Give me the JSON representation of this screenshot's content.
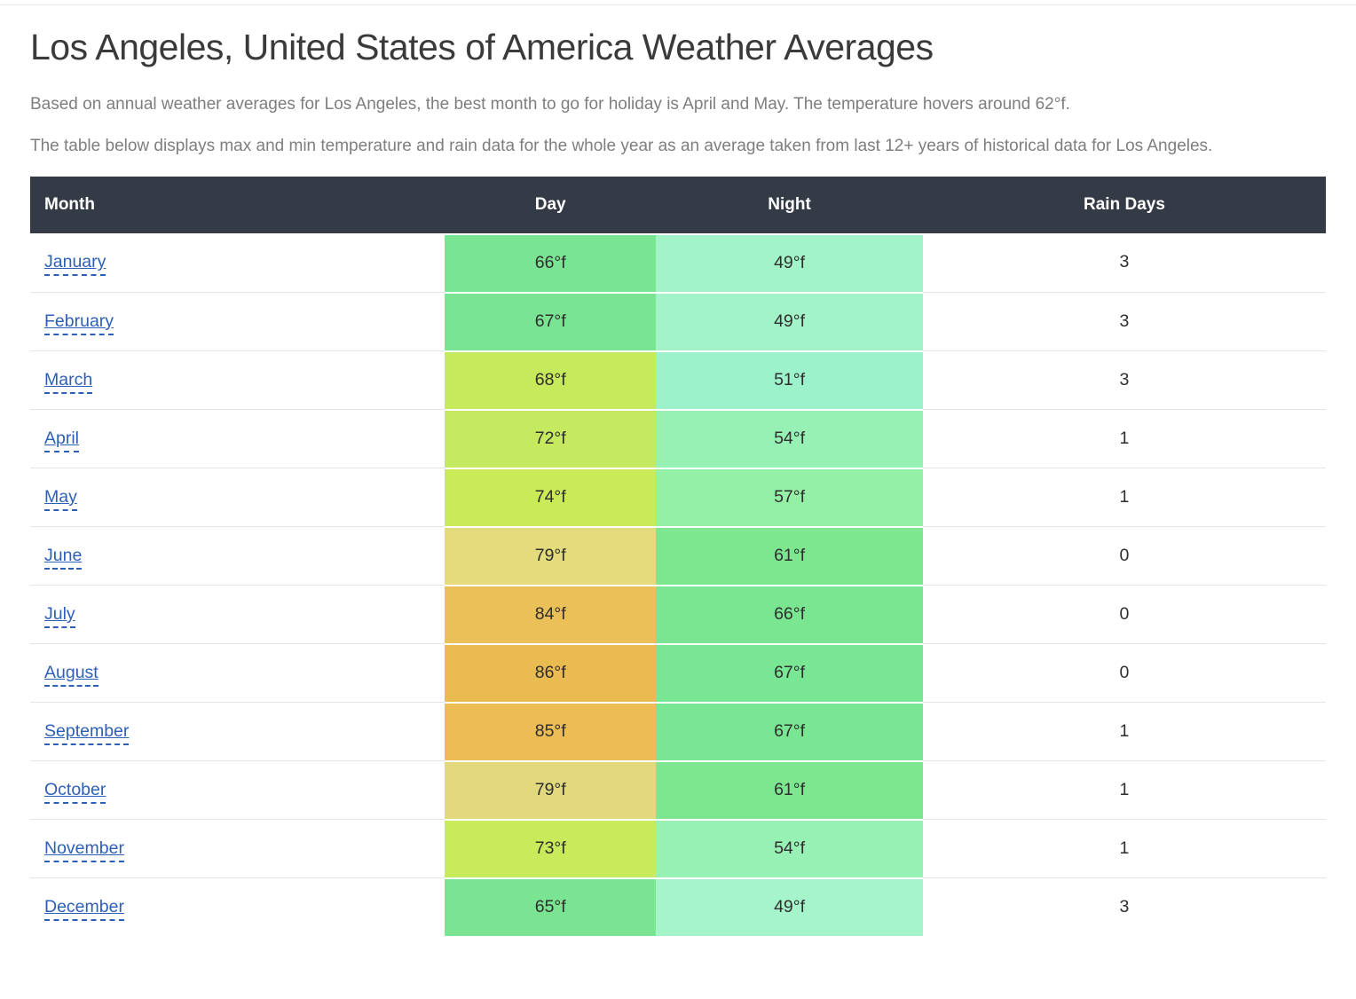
{
  "page": {
    "title": "Los Angeles, United States of America Weather Averages",
    "intro1": "Based on annual weather averages for Los Angeles, the best month to go for holiday is April and May. The temperature hovers around 62°f.",
    "intro2": "The table below displays max and min temperature and rain data for the whole year as an average taken from last 12+ years of historical data for Los Angeles."
  },
  "colors": {
    "header_bg": "#353b46",
    "header_text": "#ffffff",
    "link": "#2d5fb8",
    "row_divider": "#e4e4e4",
    "body_text": "#7e7e7e",
    "cell_text": "#2e2e2e"
  },
  "table": {
    "headers": [
      "Month",
      "Day",
      "Night",
      "Rain Days"
    ],
    "rows": [
      {
        "month": "January",
        "day": "66°f",
        "night": "49°f",
        "rain": "3",
        "day_color": "#79e492",
        "night_color": "#a2f3c7"
      },
      {
        "month": "February",
        "day": "67°f",
        "night": "49°f",
        "rain": "3",
        "day_color": "#79e492",
        "night_color": "#a2f3c7"
      },
      {
        "month": "March",
        "day": "68°f",
        "night": "51°f",
        "rain": "3",
        "day_color": "#c7e95c",
        "night_color": "#9cf2cb"
      },
      {
        "month": "April",
        "day": "72°f",
        "night": "54°f",
        "rain": "1",
        "day_color": "#c5ea5f",
        "night_color": "#97f1b4"
      },
      {
        "month": "May",
        "day": "74°f",
        "night": "57°f",
        "rain": "1",
        "day_color": "#cbea58",
        "night_color": "#94f0a6"
      },
      {
        "month": "June",
        "day": "79°f",
        "night": "61°f",
        "rain": "0",
        "day_color": "#e3db7c",
        "night_color": "#7de78f"
      },
      {
        "month": "July",
        "day": "84°f",
        "night": "66°f",
        "rain": "0",
        "day_color": "#ecc058",
        "night_color": "#7ae691"
      },
      {
        "month": "August",
        "day": "86°f",
        "night": "67°f",
        "rain": "0",
        "day_color": "#eabb51",
        "night_color": "#79e693"
      },
      {
        "month": "September",
        "day": "85°f",
        "night": "67°f",
        "rain": "1",
        "day_color": "#ebbd54",
        "night_color": "#79e693"
      },
      {
        "month": "October",
        "day": "79°f",
        "night": "61°f",
        "rain": "1",
        "day_color": "#e2d97e",
        "night_color": "#7de78f"
      },
      {
        "month": "November",
        "day": "73°f",
        "night": "54°f",
        "rain": "1",
        "day_color": "#c9ea5a",
        "night_color": "#97f1b4"
      },
      {
        "month": "December",
        "day": "65°f",
        "night": "49°f",
        "rain": "3",
        "day_color": "#7ae492",
        "night_color": "#a6f4c9"
      }
    ]
  }
}
